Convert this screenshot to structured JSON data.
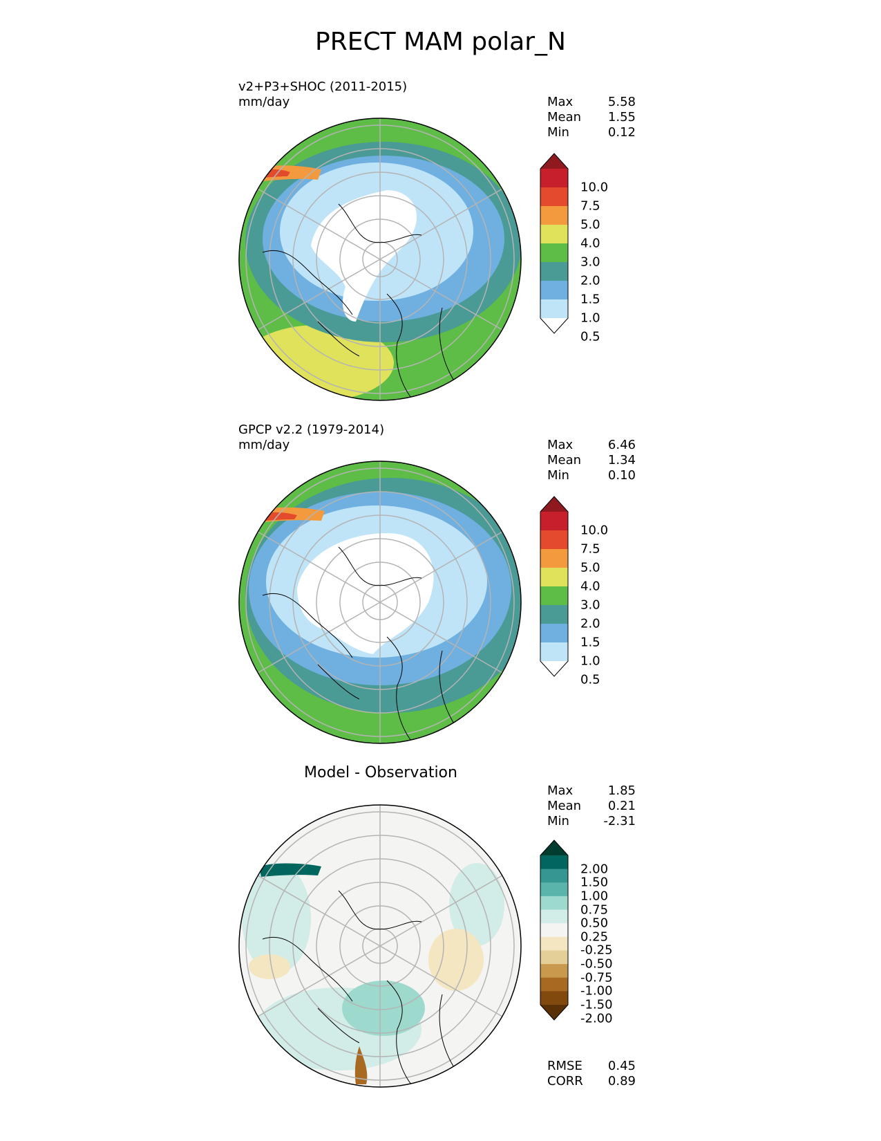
{
  "title": "PRECT MAM polar_N",
  "panels": [
    {
      "name": "v2+P3+SHOC (2011-2015)",
      "units": "mm/day",
      "stats": [
        {
          "label": "Max",
          "value": "5.58"
        },
        {
          "label": "Mean",
          "value": "1.55"
        },
        {
          "label": "Min",
          "value": "0.12"
        }
      ],
      "colorbar": {
        "ticks": [
          "10.0",
          "7.5",
          "5.0",
          "4.0",
          "3.0",
          "2.0",
          "1.5",
          "1.0",
          "0.5"
        ],
        "colors": [
          "#8e1a1f",
          "#c8202a",
          "#e44b2c",
          "#f49a3e",
          "#dfe25a",
          "#5ebd46",
          "#4a9a96",
          "#6fb0e0",
          "#bfe4f8",
          "#ffffff"
        ]
      }
    },
    {
      "name": "GPCP v2.2 (1979-2014)",
      "units": "mm/day",
      "stats": [
        {
          "label": "Max",
          "value": "6.46"
        },
        {
          "label": "Mean",
          "value": "1.34"
        },
        {
          "label": "Min",
          "value": "0.10"
        }
      ],
      "colorbar": {
        "ticks": [
          "10.0",
          "7.5",
          "5.0",
          "4.0",
          "3.0",
          "2.0",
          "1.5",
          "1.0",
          "0.5"
        ],
        "colors": [
          "#8e1a1f",
          "#c8202a",
          "#e44b2c",
          "#f49a3e",
          "#dfe25a",
          "#5ebd46",
          "#4a9a96",
          "#6fb0e0",
          "#bfe4f8",
          "#ffffff"
        ]
      }
    },
    {
      "name": "Model - Observation",
      "stats": [
        {
          "label": "Max",
          "value": "1.85"
        },
        {
          "label": "Mean",
          "value": "0.21"
        },
        {
          "label": "Min",
          "value": "-2.31"
        }
      ],
      "colorbar": {
        "ticks": [
          "2.00",
          "1.50",
          "1.00",
          "0.75",
          "0.50",
          "0.25",
          "-0.25",
          "-0.50",
          "-0.75",
          "-1.00",
          "-1.50",
          "-2.00"
        ],
        "colors": [
          "#003c30",
          "#01665e",
          "#35978f",
          "#5ab4ac",
          "#9ed9cd",
          "#d2ece8",
          "#f4f4f2",
          "#f5e6c2",
          "#e5cf99",
          "#c99a4e",
          "#a86a23",
          "#81490e",
          "#5a3006"
        ]
      },
      "metrics": [
        {
          "label": "RMSE",
          "value": "0.45"
        },
        {
          "label": "CORR",
          "value": "0.89"
        }
      ]
    }
  ],
  "map_colors": {
    "dark_green": "#4a9a96",
    "green": "#5ebd46",
    "blue": "#6fb0e0",
    "light_blue": "#bfe4f8",
    "yellow": "#dfe25a",
    "orange": "#f49a3e",
    "red": "#e44b2c",
    "grid": "#b4b4b4",
    "coast": "#000000"
  }
}
